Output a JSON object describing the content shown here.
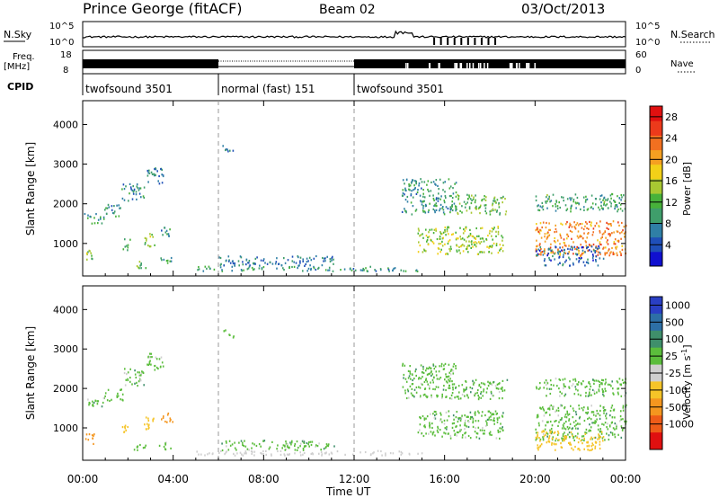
{
  "header": {
    "station": "Prince George (fitACF)",
    "beam": "Beam 02",
    "date": "03/Oct/2013"
  },
  "panels": {
    "nsky": {
      "label": "N.Sky",
      "tick_top": "10^5",
      "tick_bottom": "10^0",
      "right_label": "N.Search",
      "right_tick_top": "10^5",
      "right_tick_bottom": "10^0"
    },
    "freq": {
      "label": "Freq.",
      "unit": "[MHz]",
      "tick_top": "18",
      "tick_bottom": "8",
      "right_label": "Nave",
      "right_tick_top": "60",
      "right_tick_bottom": "0"
    },
    "cpid": {
      "label": "CPID",
      "segments": [
        {
          "label": "twofsound 3501",
          "start": 0,
          "end": 6
        },
        {
          "label": "normal (fast) 151",
          "start": 6,
          "end": 12
        },
        {
          "label": "twofsound 3501",
          "start": 12,
          "end": 24
        }
      ]
    }
  },
  "axes": {
    "x_ticks": [
      "00:00",
      "04:00",
      "08:00",
      "12:00",
      "16:00",
      "20:00",
      "00:00"
    ],
    "xlabel": "Time UT",
    "y_ticks": [
      "1000",
      "2000",
      "3000",
      "4000"
    ],
    "ylabel": "Slant Range [km]"
  },
  "colorbars": {
    "power": {
      "title": "Power [dB]",
      "ticks": [
        "4",
        "8",
        "12",
        "16",
        "20",
        "24",
        "28"
      ],
      "colors": [
        "#1010d0",
        "#1f4fb8",
        "#2f7fa6",
        "#3f9e6b",
        "#47b23a",
        "#a8c832",
        "#f2d018",
        "#f5a021",
        "#f27020",
        "#ec3a1b",
        "#e01010"
      ]
    },
    "velocity": {
      "title": "Velocity [m s-1]",
      "ticks": [
        "1000",
        "500",
        "100",
        "25",
        "-25",
        "-100",
        "-500",
        "-1000"
      ],
      "colors": [
        "#2a3fc4",
        "#2d6fa6",
        "#3f8f6b",
        "#5bbd3c",
        "#cfcfcf",
        "#f5c428",
        "#f4961f",
        "#ee5c18",
        "#e01010"
      ]
    }
  },
  "chart_data": [
    {
      "type": "heatmap",
      "title": "Power [dB]",
      "xlabel": "Time UT",
      "ylabel": "Slant Range [km]",
      "xlim": [
        0,
        24
      ],
      "ylim": [
        180,
        4600
      ],
      "colorbar_range": [
        0,
        30
      ],
      "blobs": [
        {
          "x": 0.5,
          "y": 1650,
          "w": 0.9,
          "h": 250,
          "v": 10
        },
        {
          "x": 1.3,
          "y": 1850,
          "w": 0.9,
          "h": 300,
          "v": 9
        },
        {
          "x": 2.2,
          "y": 2300,
          "w": 1.0,
          "h": 450,
          "v": 8
        },
        {
          "x": 3.2,
          "y": 2700,
          "w": 0.8,
          "h": 450,
          "v": 7
        },
        {
          "x": 0.3,
          "y": 700,
          "w": 0.4,
          "h": 350,
          "v": 14
        },
        {
          "x": 1.9,
          "y": 1000,
          "w": 0.35,
          "h": 300,
          "v": 10
        },
        {
          "x": 2.9,
          "y": 1100,
          "w": 0.5,
          "h": 400,
          "v": 13
        },
        {
          "x": 3.7,
          "y": 1300,
          "w": 0.5,
          "h": 300,
          "v": 9
        },
        {
          "x": 2.5,
          "y": 500,
          "w": 0.6,
          "h": 200,
          "v": 11
        },
        {
          "x": 3.6,
          "y": 560,
          "w": 0.6,
          "h": 200,
          "v": 9
        },
        {
          "x": 8.6,
          "y": 580,
          "w": 5.2,
          "h": 250,
          "v": 7
        },
        {
          "x": 10.0,
          "y": 380,
          "w": 10.0,
          "h": 120,
          "v": 9
        },
        {
          "x": 6.4,
          "y": 3400,
          "w": 0.5,
          "h": 200,
          "v": 7
        },
        {
          "x": 15.3,
          "y": 2200,
          "w": 2.4,
          "h": 900,
          "v": 9
        },
        {
          "x": 17.5,
          "y": 2000,
          "w": 2.5,
          "h": 500,
          "v": 12
        },
        {
          "x": 16.7,
          "y": 1100,
          "w": 3.8,
          "h": 700,
          "v": 15
        },
        {
          "x": 22.0,
          "y": 1150,
          "w": 4.0,
          "h": 900,
          "v": 22
        },
        {
          "x": 22.0,
          "y": 2050,
          "w": 4.0,
          "h": 450,
          "v": 10
        },
        {
          "x": 21.5,
          "y": 700,
          "w": 3.0,
          "h": 500,
          "v": 6
        }
      ]
    },
    {
      "type": "heatmap",
      "title": "Velocity [m s-1]",
      "xlabel": "Time UT",
      "ylabel": "Slant Range [km]",
      "xlim": [
        0,
        24
      ],
      "ylim": [
        180,
        4600
      ],
      "colorbar_range": [
        -1000,
        1000
      ],
      "blobs": [
        {
          "x": 0.5,
          "y": 1650,
          "w": 0.9,
          "h": 250,
          "v": 0
        },
        {
          "x": 1.3,
          "y": 1850,
          "w": 0.9,
          "h": 300,
          "v": 0
        },
        {
          "x": 2.2,
          "y": 2300,
          "w": 1.0,
          "h": 450,
          "v": 0
        },
        {
          "x": 3.2,
          "y": 2700,
          "w": 0.8,
          "h": 450,
          "v": 0
        },
        {
          "x": 0.3,
          "y": 700,
          "w": 0.4,
          "h": 350,
          "v": -700
        },
        {
          "x": 1.9,
          "y": 1000,
          "w": 0.35,
          "h": 300,
          "v": -200
        },
        {
          "x": 2.9,
          "y": 1100,
          "w": 0.5,
          "h": 400,
          "v": -400
        },
        {
          "x": 3.7,
          "y": 1300,
          "w": 0.5,
          "h": 300,
          "v": -600
        },
        {
          "x": 2.5,
          "y": 500,
          "w": 0.6,
          "h": 200,
          "v": 0
        },
        {
          "x": 3.6,
          "y": 560,
          "w": 0.6,
          "h": 200,
          "v": 0
        },
        {
          "x": 8.6,
          "y": 580,
          "w": 5.2,
          "h": 250,
          "v": 0
        },
        {
          "x": 10.0,
          "y": 380,
          "w": 10.0,
          "h": 120,
          "v": -60
        },
        {
          "x": 6.4,
          "y": 3400,
          "w": 0.5,
          "h": 200,
          "v": 0
        },
        {
          "x": 15.3,
          "y": 2200,
          "w": 2.4,
          "h": 900,
          "v": 0
        },
        {
          "x": 17.5,
          "y": 2000,
          "w": 2.5,
          "h": 500,
          "v": 0
        },
        {
          "x": 16.7,
          "y": 1100,
          "w": 3.8,
          "h": 700,
          "v": 0
        },
        {
          "x": 22.0,
          "y": 1150,
          "w": 4.0,
          "h": 900,
          "v": 0
        },
        {
          "x": 22.0,
          "y": 2050,
          "w": 4.0,
          "h": 450,
          "v": 0
        },
        {
          "x": 21.5,
          "y": 700,
          "w": 3.0,
          "h": 500,
          "v": -150
        }
      ]
    }
  ]
}
